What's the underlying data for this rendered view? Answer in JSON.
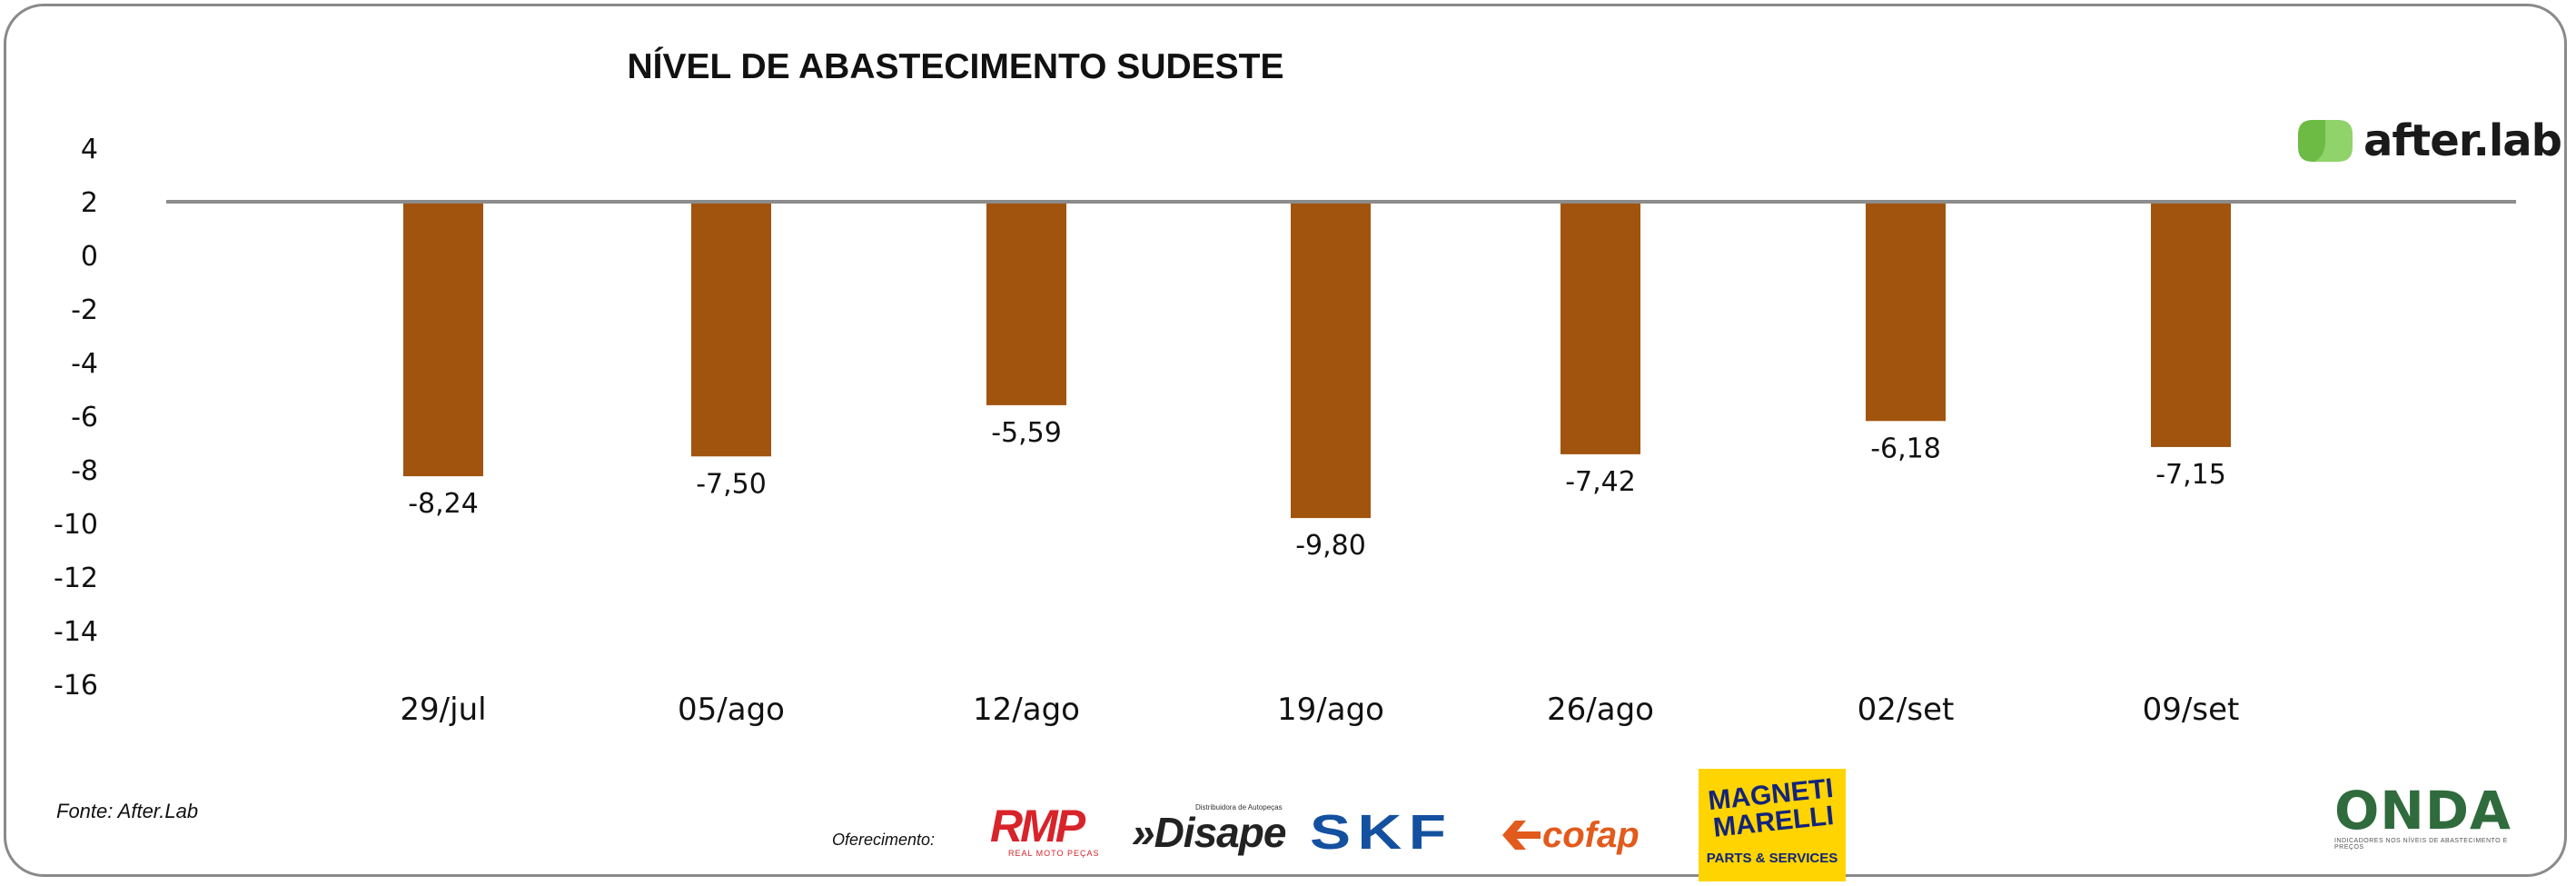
{
  "chart_data": {
    "type": "bar",
    "title": "NÍVEL DE ABASTECIMENTO SUDESTE",
    "categories": [
      "29/jul",
      "05/ago",
      "12/ago",
      "19/ago",
      "26/ago",
      "02/set",
      "09/set"
    ],
    "values": [
      -8.24,
      -7.5,
      -5.59,
      -9.8,
      -7.42,
      -6.18,
      -7.15
    ],
    "data_labels": [
      "-8,24",
      "-7,50",
      "-5,59",
      "-9,80",
      "-7,42",
      "-6,18",
      "-7,15"
    ],
    "yticks": [
      4,
      2,
      0,
      -2,
      -4,
      -6,
      -8,
      -10,
      -12,
      -14,
      -16
    ],
    "ytick_labels": [
      "4",
      "2",
      "0",
      "-2",
      "-4",
      "-6",
      "-8",
      "-10",
      "-12",
      "-14",
      "-16"
    ],
    "ylim": [
      -16,
      4
    ],
    "baseline": 2,
    "grid": false,
    "legend": "none",
    "bar_color": "#a0540e",
    "baseline_color": "#8c8c8c"
  },
  "source": "Fonte: After.Lab",
  "offer_label": "Oferecimento:",
  "logos": {
    "after_lab": "after.lab",
    "rmp": "RMP",
    "rmp_sub": "REAL MOTO PEÇAS",
    "disape": "»Disape",
    "disape_sub": "Distribuidora de Autopeças",
    "skf": "SKF",
    "cofap": "cofap",
    "magneti": "MAGNETI MARELLI",
    "magneti_sub": "PARTS & SERVICES",
    "onda": "ONDA",
    "onda_sub": "INDICADORES NOS NÍVEIS DE ABASTECIMENTO E PREÇOS"
  },
  "colors": {
    "after_green": "#6dbb45",
    "frame": "#8a8a8a"
  }
}
